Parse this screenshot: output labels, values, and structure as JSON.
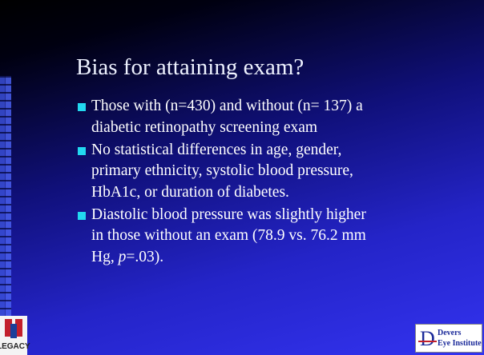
{
  "slide": {
    "title": "Bias for attaining exam?",
    "bullets": [
      {
        "lines": [
          "Those with (n=430) and without (n= 137) a",
          "diabetic retinopathy screening exam"
        ]
      },
      {
        "lines": [
          "No statistical differences in age, gender,",
          "primary ethnicity, systolic blood pressure,",
          "HbA1c, or duration of diabetes."
        ]
      },
      {
        "lines": [
          "Diastolic blood pressure was slightly higher",
          "in those without an exam (78.9 vs. 76.2 mm"
        ],
        "last": {
          "pre": "Hg, ",
          "em": "p",
          "post": "=.03)."
        }
      }
    ],
    "logo_left": "LEGACY",
    "logo_right": {
      "letter": "D",
      "line1": "Devers",
      "line2": "Eye Institute"
    }
  }
}
